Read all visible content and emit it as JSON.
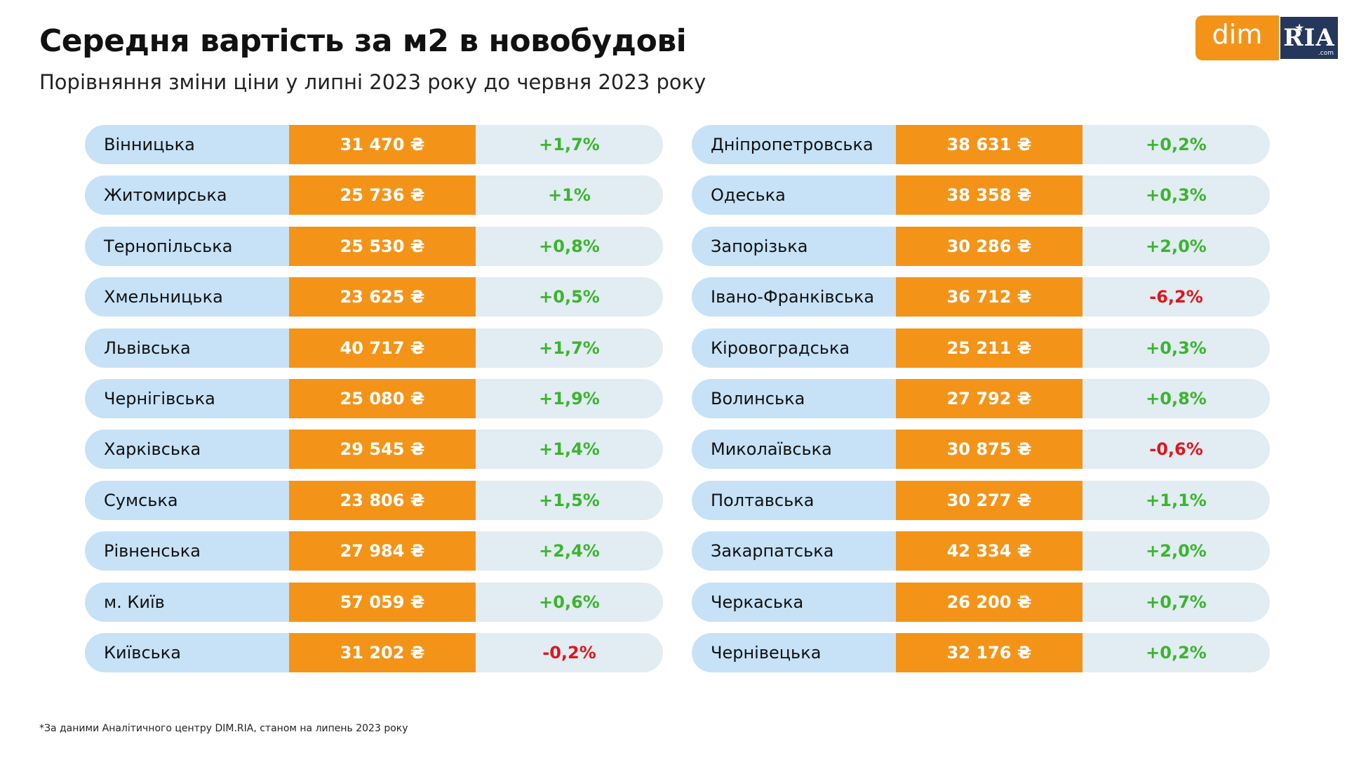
{
  "header": {
    "title": "Середня вартість за м2 в новобудові",
    "subtitle": "Порівняння зміни ціни у липні 2023 року до червня 2023 року"
  },
  "logo": {
    "part1": "dim",
    "part2": "RIA",
    "suffix": ".com",
    "star": "★"
  },
  "colors": {
    "name_bg": "#c7e2f7",
    "price_bg": "#f39419",
    "change_bg": "#e1ecf3",
    "positive": "#3bb52c",
    "negative": "#e0151b"
  },
  "footnote": "*За даними Аналітичного центру DIM.RIA, станом на липень 2023 року",
  "chart_data": {
    "type": "table",
    "columns": [
      "region",
      "price",
      "change"
    ],
    "left": [
      {
        "region": "Вінницька",
        "price": "31 470 ₴",
        "change": "+1,7%",
        "value": 31470,
        "change_pct": 1.7
      },
      {
        "region": "Житомирська",
        "price": "25 736 ₴",
        "change": "+1%",
        "value": 25736,
        "change_pct": 1.0
      },
      {
        "region": "Тернопільська",
        "price": "25 530 ₴",
        "change": "+0,8%",
        "value": 25530,
        "change_pct": 0.8
      },
      {
        "region": "Хмельницька",
        "price": "23 625 ₴",
        "change": "+0,5%",
        "value": 23625,
        "change_pct": 0.5
      },
      {
        "region": "Львівська",
        "price": "40 717 ₴",
        "change": "+1,7%",
        "value": 40717,
        "change_pct": 1.7
      },
      {
        "region": "Чернігівська",
        "price": "25 080 ₴",
        "change": "+1,9%",
        "value": 25080,
        "change_pct": 1.9
      },
      {
        "region": "Харківська",
        "price": "29 545 ₴",
        "change": "+1,4%",
        "value": 29545,
        "change_pct": 1.4
      },
      {
        "region": "Сумська",
        "price": "23 806 ₴",
        "change": "+1,5%",
        "value": 23806,
        "change_pct": 1.5
      },
      {
        "region": "Рівненська",
        "price": "27 984 ₴",
        "change": "+2,4%",
        "value": 27984,
        "change_pct": 2.4
      },
      {
        "region": "м. Київ",
        "price": "57 059 ₴",
        "change": "+0,6%",
        "value": 57059,
        "change_pct": 0.6
      },
      {
        "region": "Київська",
        "price": "31 202 ₴",
        "change": "-0,2%",
        "value": 31202,
        "change_pct": -0.2
      }
    ],
    "right": [
      {
        "region": "Дніпропетровська",
        "price": "38 631 ₴",
        "change": "+0,2%",
        "value": 38631,
        "change_pct": 0.2
      },
      {
        "region": "Одеська",
        "price": "38 358 ₴",
        "change": "+0,3%",
        "value": 38358,
        "change_pct": 0.3
      },
      {
        "region": "Запорізька",
        "price": "30 286 ₴",
        "change": "+2,0%",
        "value": 30286,
        "change_pct": 2.0
      },
      {
        "region": "Івано-Франківська",
        "price": "36 712 ₴",
        "change": "-6,2%",
        "value": 36712,
        "change_pct": -6.2
      },
      {
        "region": "Кіровоградська",
        "price": "25 211 ₴",
        "change": "+0,3%",
        "value": 25211,
        "change_pct": 0.3
      },
      {
        "region": "Волинська",
        "price": "27 792 ₴",
        "change": "+0,8%",
        "value": 27792,
        "change_pct": 0.8
      },
      {
        "region": "Миколаївська",
        "price": "30 875 ₴",
        "change": "-0,6%",
        "value": 30875,
        "change_pct": -0.6
      },
      {
        "region": "Полтавська",
        "price": "30 277 ₴",
        "change": "+1,1%",
        "value": 30277,
        "change_pct": 1.1
      },
      {
        "region": "Закарпатська",
        "price": "42 334 ₴",
        "change": "+2,0%",
        "value": 42334,
        "change_pct": 2.0
      },
      {
        "region": "Черкаська",
        "price": "26 200 ₴",
        "change": "+0,7%",
        "value": 26200,
        "change_pct": 0.7
      },
      {
        "region": "Чернівецька",
        "price": "32 176 ₴",
        "change": "+0,2%",
        "value": 32176,
        "change_pct": 0.2
      }
    ]
  }
}
